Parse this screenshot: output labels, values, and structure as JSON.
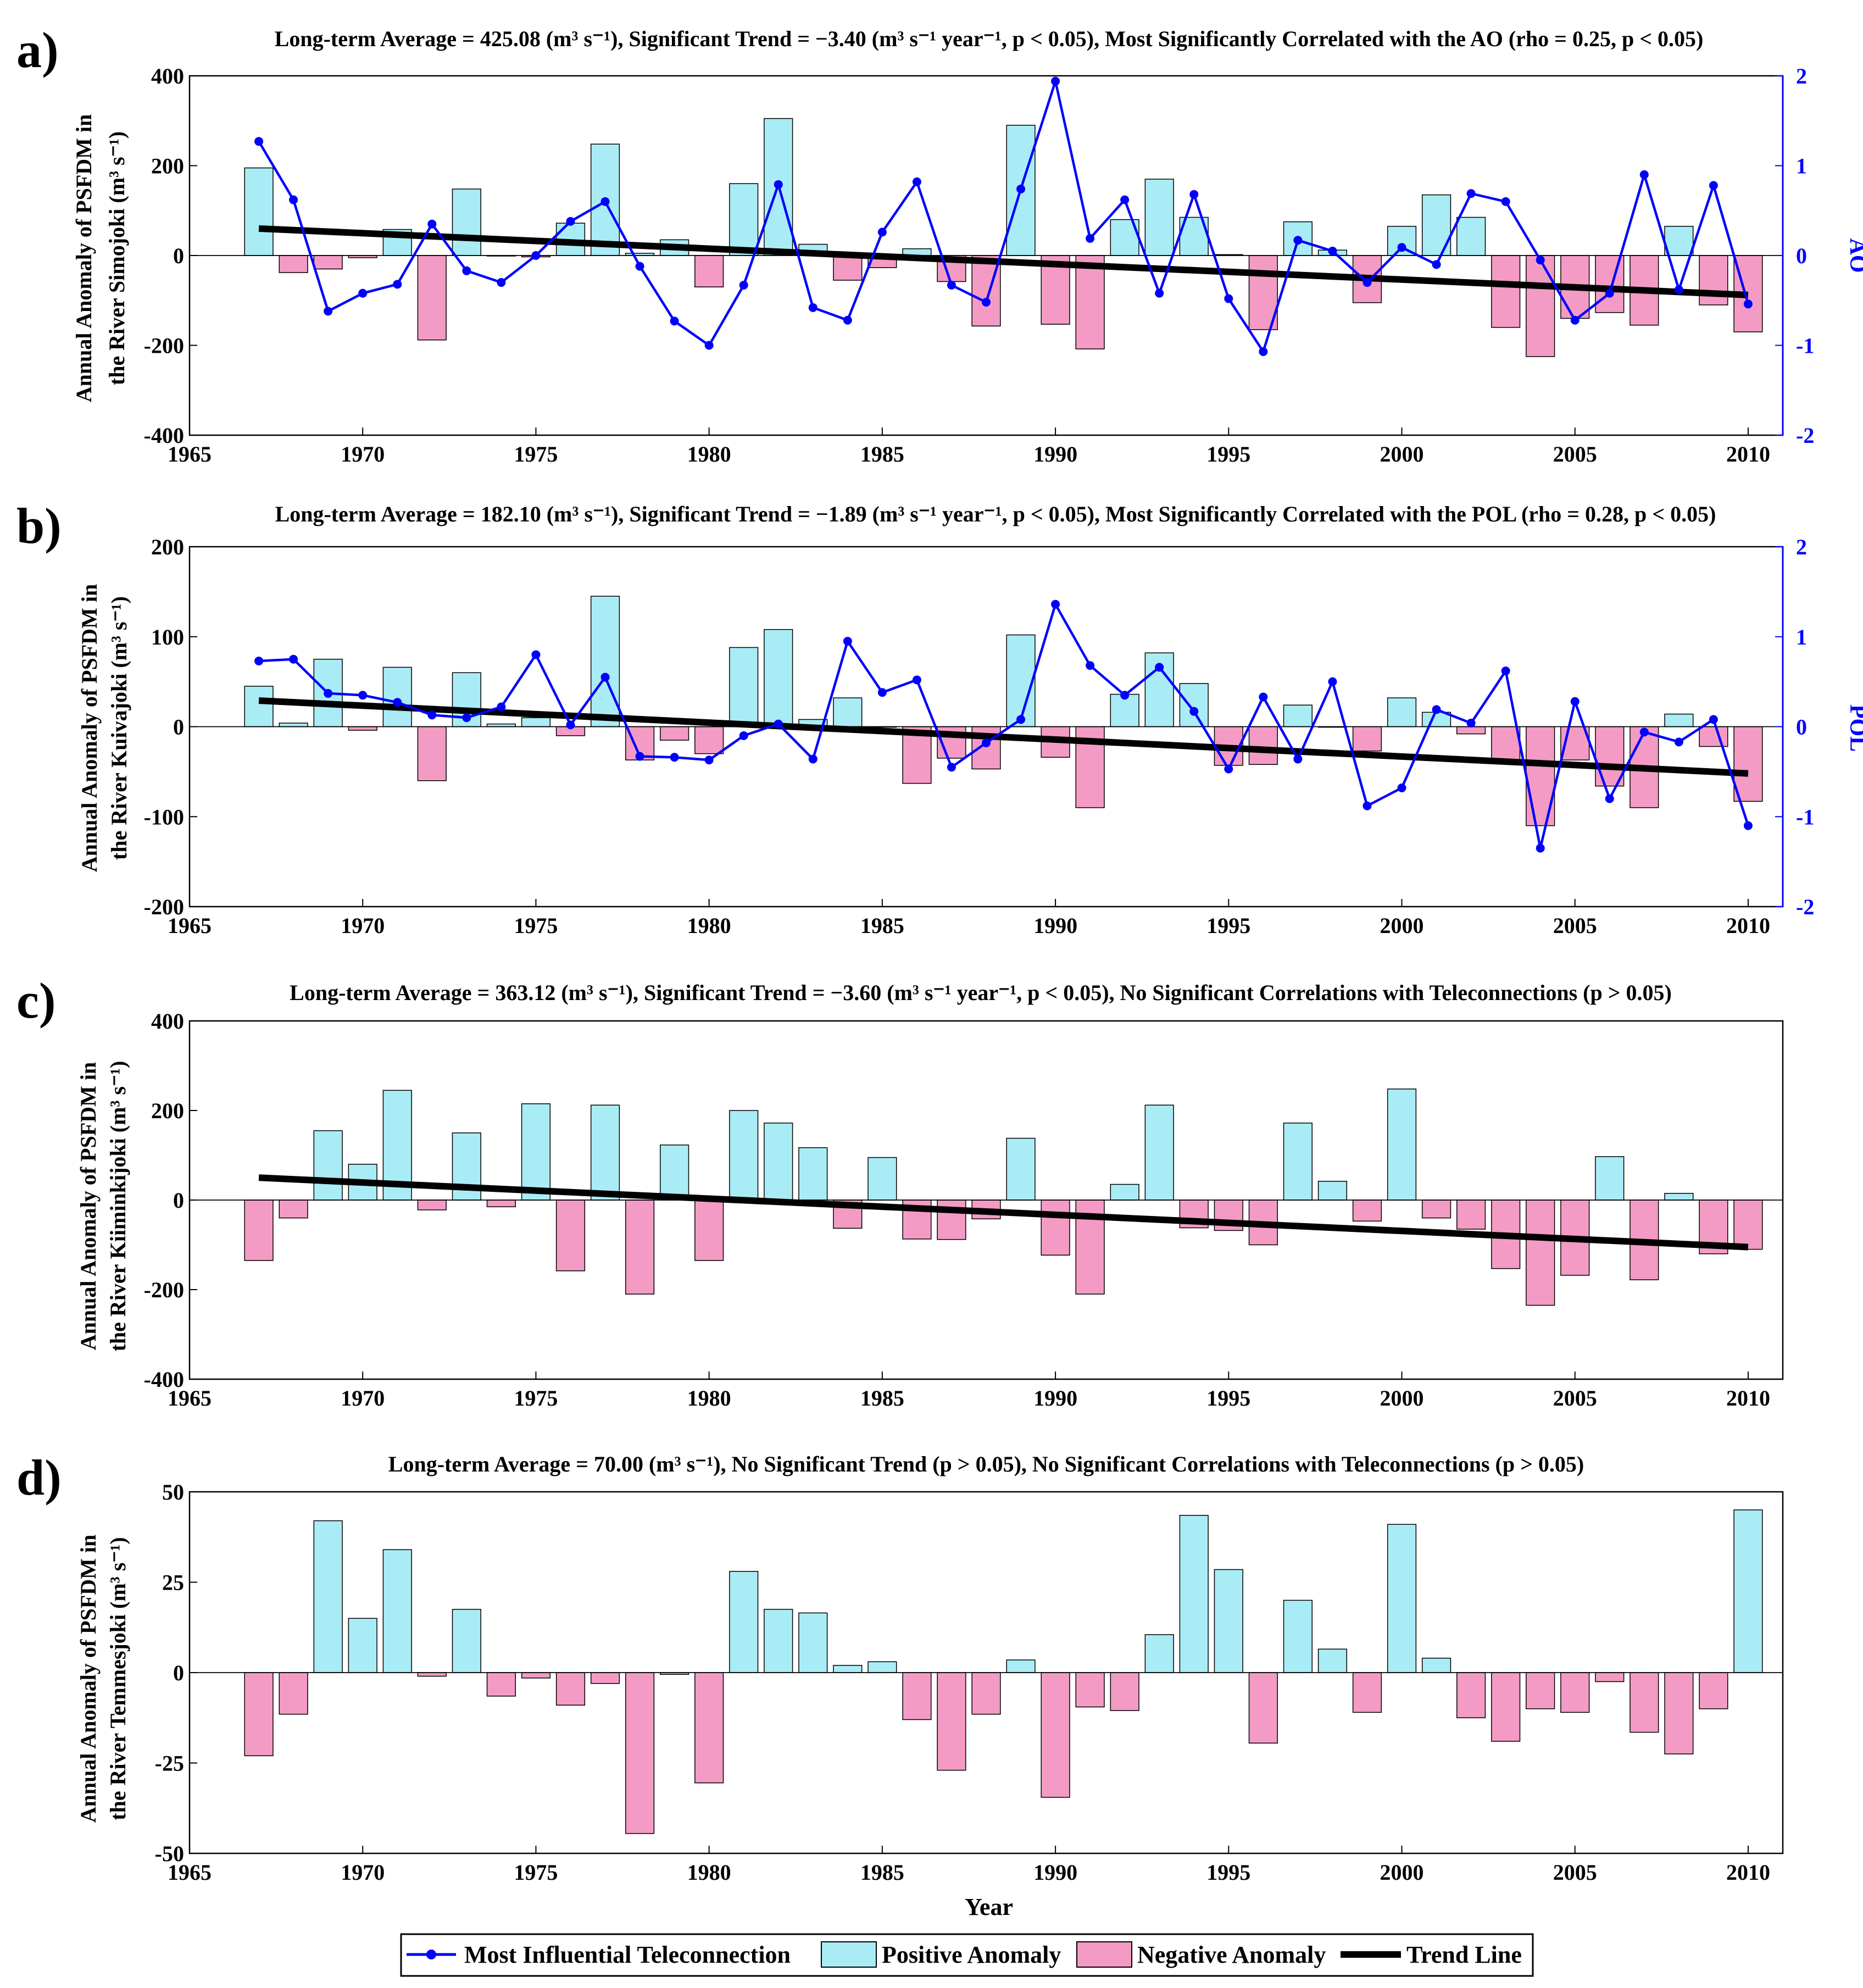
{
  "colors": {
    "positive": "#a9ecf6",
    "negative": "#f39bc4",
    "teleconnection": "#0000ff",
    "trend": "#000000"
  },
  "legend": {
    "teleconnection": "Most Influential Teleconnection",
    "positive": "Positive Anomaly",
    "negative": "Negative Anomaly",
    "trend": "Trend Line"
  },
  "x_axis_label": "Year",
  "chart_data": [
    {
      "type": "bar",
      "panel": "a)",
      "title": "Long-term Average = 425.08 (m³ s⁻¹), Significant Trend = −3.40 (m³ s⁻¹ year⁻¹, p < 0.05), Most Significantly Correlated with the AO (rho = 0.25, p < 0.05)",
      "ylabel_line1": "Annual Anomaly of PSFDM in",
      "ylabel_line2": "the River Simojoki (m³ s⁻¹)",
      "y2label": "AO",
      "xlim": [
        1965,
        2011
      ],
      "ylim": [
        -400,
        400
      ],
      "yticks": [
        -400,
        -200,
        0,
        200,
        400
      ],
      "y2lim": [
        -2,
        2
      ],
      "y2ticks": [
        -2,
        -1,
        0,
        1,
        2
      ],
      "xticks": [
        1965,
        1970,
        1975,
        1980,
        1985,
        1990,
        1995,
        2000,
        2005,
        2010
      ],
      "years": [
        1967,
        1968,
        1969,
        1970,
        1971,
        1972,
        1973,
        1974,
        1975,
        1976,
        1977,
        1978,
        1979,
        1980,
        1981,
        1982,
        1983,
        1984,
        1985,
        1986,
        1987,
        1988,
        1989,
        1990,
        1991,
        1992,
        1993,
        1994,
        1995,
        1996,
        1997,
        1998,
        1999,
        2000,
        2001,
        2002,
        2003,
        2004,
        2005,
        2006,
        2007,
        2008,
        2009,
        2010
      ],
      "values": [
        195,
        -38,
        -30,
        -5,
        58,
        -188,
        148,
        0,
        -3,
        72,
        248,
        5,
        35,
        -70,
        160,
        305,
        25,
        -55,
        -27,
        15,
        -58,
        -157,
        290,
        -153,
        -208,
        80,
        170,
        85,
        2,
        -165,
        75,
        12,
        -105,
        65,
        135,
        85,
        -160,
        -225,
        -140,
        -127,
        -155,
        65,
        -110,
        -170
      ],
      "trend": {
        "start": [
          1967,
          60
        ],
        "end": [
          2010,
          -88
        ]
      },
      "teleconnection": [
        1.27,
        0.62,
        -0.62,
        -0.42,
        -0.32,
        0.35,
        -0.17,
        -0.3,
        0.0,
        0.38,
        0.6,
        -0.12,
        -0.73,
        -1.0,
        -0.33,
        0.79,
        -0.58,
        -0.72,
        0.26,
        0.82,
        -0.33,
        -0.52,
        0.74,
        1.94,
        0.19,
        0.62,
        -0.42,
        0.68,
        -0.48,
        -1.07,
        0.17,
        0.05,
        -0.3,
        0.09,
        -0.1,
        0.69,
        0.6,
        -0.05,
        -0.72,
        -0.42,
        0.9,
        -0.38,
        0.78,
        -0.54
      ]
    },
    {
      "type": "bar",
      "panel": "b)",
      "title": "Long-term Average = 182.10 (m³ s⁻¹), Significant Trend = −1.89 (m³ s⁻¹ year⁻¹, p < 0.05), Most Significantly Correlated with the POL (rho = 0.28, p < 0.05)",
      "ylabel_line1": "Annual Anomaly of PSFDM in",
      "ylabel_line2": "the River Kuivajoki (m³ s⁻¹)",
      "y2label": "POL",
      "xlim": [
        1965,
        2011
      ],
      "ylim": [
        -200,
        200
      ],
      "yticks": [
        -200,
        -100,
        0,
        100,
        200
      ],
      "y2lim": [
        -2,
        2
      ],
      "y2ticks": [
        -2,
        -1,
        0,
        1,
        2
      ],
      "xticks": [
        1965,
        1970,
        1975,
        1980,
        1985,
        1990,
        1995,
        2000,
        2005,
        2010
      ],
      "years": [
        1967,
        1968,
        1969,
        1970,
        1971,
        1972,
        1973,
        1974,
        1975,
        1976,
        1977,
        1978,
        1979,
        1980,
        1981,
        1982,
        1983,
        1984,
        1985,
        1986,
        1987,
        1988,
        1989,
        1990,
        1991,
        1992,
        1993,
        1994,
        1995,
        1996,
        1997,
        1998,
        1999,
        2000,
        2001,
        2002,
        2003,
        2004,
        2005,
        2006,
        2007,
        2008,
        2009,
        2010
      ],
      "values": [
        45,
        4,
        75,
        -4,
        66,
        -60,
        60,
        3,
        10,
        -10,
        145,
        -37,
        -15,
        -30,
        88,
        108,
        8,
        32,
        0,
        -63,
        -35,
        -47,
        102,
        -34,
        -90,
        36,
        82,
        48,
        -43,
        -42,
        24,
        0,
        -27,
        32,
        16,
        -8,
        -37,
        -110,
        -37,
        -66,
        -90,
        14,
        -22,
        -83
      ],
      "trend": {
        "start": [
          1967,
          29
        ],
        "end": [
          2010,
          -52
        ]
      },
      "teleconnection": [
        0.73,
        0.75,
        0.37,
        0.35,
        0.27,
        0.13,
        0.1,
        0.22,
        0.8,
        0.02,
        0.55,
        -0.33,
        -0.34,
        -0.37,
        -0.1,
        0.03,
        -0.36,
        0.95,
        0.38,
        0.52,
        -0.45,
        -0.18,
        0.08,
        1.36,
        0.68,
        0.35,
        0.66,
        0.17,
        -0.47,
        0.33,
        -0.36,
        0.5,
        -0.88,
        -0.68,
        0.19,
        0.04,
        0.62,
        -1.35,
        0.28,
        -0.8,
        -0.06,
        -0.17,
        0.08,
        -1.1
      ]
    },
    {
      "type": "bar",
      "panel": "c)",
      "title": "Long-term Average = 363.12 (m³ s⁻¹), Significant Trend = −3.60 (m³ s⁻¹ year⁻¹, p < 0.05), No Significant Correlations with Teleconnections (p > 0.05)",
      "ylabel_line1": "Annual Anomaly of PSFDM in",
      "ylabel_line2": "the River Kiiminkijoki (m³ s⁻¹)",
      "xlim": [
        1965,
        2011
      ],
      "ylim": [
        -400,
        400
      ],
      "yticks": [
        -400,
        -200,
        0,
        200,
        400
      ],
      "xticks": [
        1965,
        1970,
        1975,
        1980,
        1985,
        1990,
        1995,
        2000,
        2005,
        2010
      ],
      "years": [
        1967,
        1968,
        1969,
        1970,
        1971,
        1972,
        1973,
        1974,
        1975,
        1976,
        1977,
        1978,
        1979,
        1980,
        1981,
        1982,
        1983,
        1984,
        1985,
        1986,
        1987,
        1988,
        1989,
        1990,
        1991,
        1992,
        1993,
        1994,
        1995,
        1996,
        1997,
        1998,
        1999,
        2000,
        2001,
        2002,
        2003,
        2004,
        2005,
        2006,
        2007,
        2008,
        2009,
        2010
      ],
      "values": [
        -135,
        -40,
        155,
        80,
        245,
        -22,
        150,
        -15,
        215,
        -158,
        212,
        -210,
        123,
        -135,
        200,
        172,
        117,
        -63,
        95,
        -87,
        -88,
        -42,
        138,
        -123,
        -210,
        35,
        212,
        -62,
        -68,
        -100,
        172,
        42,
        -47,
        248,
        -40,
        -65,
        -153,
        -235,
        -168,
        97,
        -178,
        15,
        -120,
        -110
      ],
      "trend": {
        "start": [
          1967,
          50
        ],
        "end": [
          2010,
          -105
        ]
      }
    },
    {
      "type": "bar",
      "panel": "d)",
      "title": "Long-term Average = 70.00 (m³ s⁻¹), No Significant Trend (p > 0.05), No Significant Correlations with Teleconnections (p > 0.05)",
      "ylabel_line1": "Annual Anomaly of PSFDM in",
      "ylabel_line2": "the River Temmesjoki (m³ s⁻¹)",
      "xlim": [
        1965,
        2011
      ],
      "ylim": [
        -50,
        50
      ],
      "yticks": [
        -50,
        -25,
        0,
        25,
        50
      ],
      "xticks": [
        1965,
        1970,
        1975,
        1980,
        1985,
        1990,
        1995,
        2000,
        2005,
        2010
      ],
      "years": [
        1967,
        1968,
        1969,
        1970,
        1971,
        1972,
        1973,
        1974,
        1975,
        1976,
        1977,
        1978,
        1979,
        1980,
        1981,
        1982,
        1983,
        1984,
        1985,
        1986,
        1987,
        1988,
        1989,
        1990,
        1991,
        1992,
        1993,
        1994,
        1995,
        1996,
        1997,
        1998,
        1999,
        2000,
        2001,
        2002,
        2003,
        2004,
        2005,
        2006,
        2007,
        2008,
        2009,
        2010
      ],
      "values": [
        -23,
        -11.5,
        42,
        15,
        34,
        -1,
        17.5,
        -6.5,
        -1.5,
        -9,
        -3,
        -44.5,
        -0.5,
        -30.5,
        28,
        17.5,
        16.5,
        2,
        3,
        -13,
        -27,
        -11.5,
        3.5,
        -34.5,
        -9.5,
        -10.5,
        10.5,
        43.5,
        28.5,
        -19.5,
        20,
        6.5,
        -11,
        41,
        4,
        -12.5,
        -19,
        -10,
        -11,
        -2.5,
        -16.5,
        -22.5,
        -10,
        45
      ]
    }
  ]
}
